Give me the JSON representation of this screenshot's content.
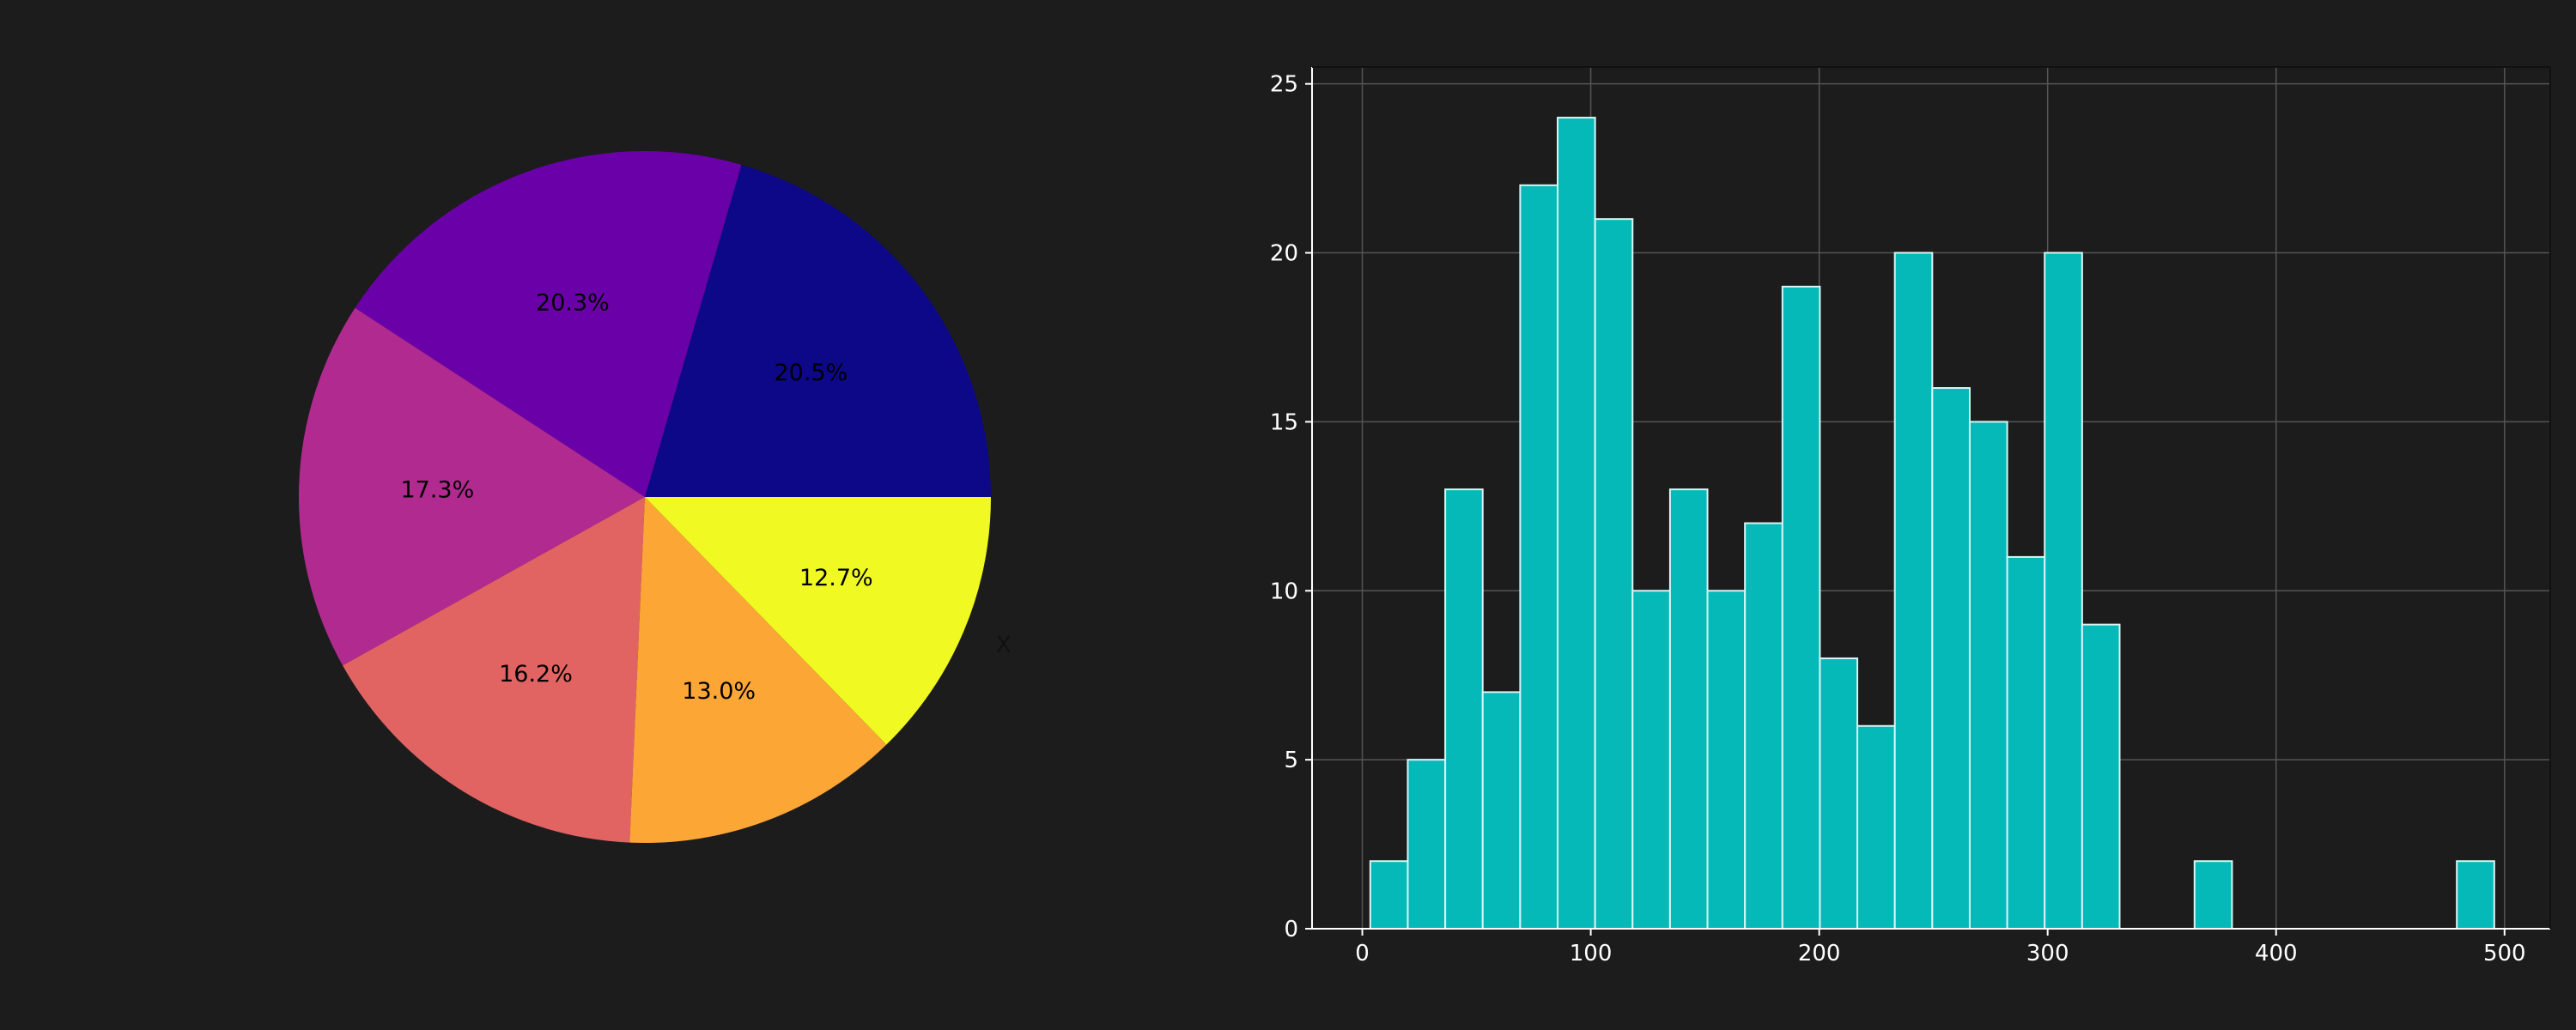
{
  "chart_data": [
    {
      "type": "pie",
      "title": "",
      "labels": [
        "",
        "",
        "",
        "",
        "",
        "X"
      ],
      "values": [
        20.5,
        20.3,
        17.3,
        16.2,
        13.0,
        12.7
      ],
      "percent_labels": [
        "20.5%",
        "20.3%",
        "17.3%",
        "16.2%",
        "13.0%",
        "12.7%"
      ],
      "colors": [
        "#0d0887",
        "#6a00a8",
        "#b12a90",
        "#e16462",
        "#fca636",
        "#f0f921"
      ],
      "start_angle_deg": 0,
      "direction": "counterclockwise"
    },
    {
      "type": "bar",
      "subtype": "histogram",
      "title": "",
      "xlabel": "",
      "ylabel": "",
      "xlim": [
        -22,
        520
      ],
      "ylim": [
        0,
        25.5
      ],
      "xticks": [
        0,
        100,
        200,
        300,
        400,
        500
      ],
      "yticks": [
        0,
        5,
        10,
        15,
        20,
        25
      ],
      "bins": [
        {
          "x0": 3.5,
          "x1": 19.9,
          "count": 2
        },
        {
          "x0": 19.9,
          "x1": 36.3,
          "count": 5
        },
        {
          "x0": 36.3,
          "x1": 52.7,
          "count": 13
        },
        {
          "x0": 52.7,
          "x1": 69.1,
          "count": 7
        },
        {
          "x0": 69.1,
          "x1": 85.5,
          "count": 22
        },
        {
          "x0": 85.5,
          "x1": 101.9,
          "count": 24
        },
        {
          "x0": 101.9,
          "x1": 118.3,
          "count": 21
        },
        {
          "x0": 118.3,
          "x1": 134.7,
          "count": 10
        },
        {
          "x0": 134.7,
          "x1": 151.1,
          "count": 13
        },
        {
          "x0": 151.1,
          "x1": 167.5,
          "count": 10
        },
        {
          "x0": 167.5,
          "x1": 183.9,
          "count": 12
        },
        {
          "x0": 183.9,
          "x1": 200.3,
          "count": 19
        },
        {
          "x0": 200.3,
          "x1": 216.7,
          "count": 8
        },
        {
          "x0": 216.7,
          "x1": 233.1,
          "count": 6
        },
        {
          "x0": 233.1,
          "x1": 249.5,
          "count": 20
        },
        {
          "x0": 249.5,
          "x1": 265.9,
          "count": 16
        },
        {
          "x0": 265.9,
          "x1": 282.3,
          "count": 15
        },
        {
          "x0": 282.3,
          "x1": 298.7,
          "count": 11
        },
        {
          "x0": 298.7,
          "x1": 315.1,
          "count": 20
        },
        {
          "x0": 315.1,
          "x1": 331.5,
          "count": 9
        },
        {
          "x0": 364.3,
          "x1": 380.7,
          "count": 2
        },
        {
          "x0": 479.1,
          "x1": 495.5,
          "count": 2
        }
      ],
      "bar_color": "#06b9b9",
      "edge_color": "#d8f5f5",
      "grid": true
    }
  ]
}
